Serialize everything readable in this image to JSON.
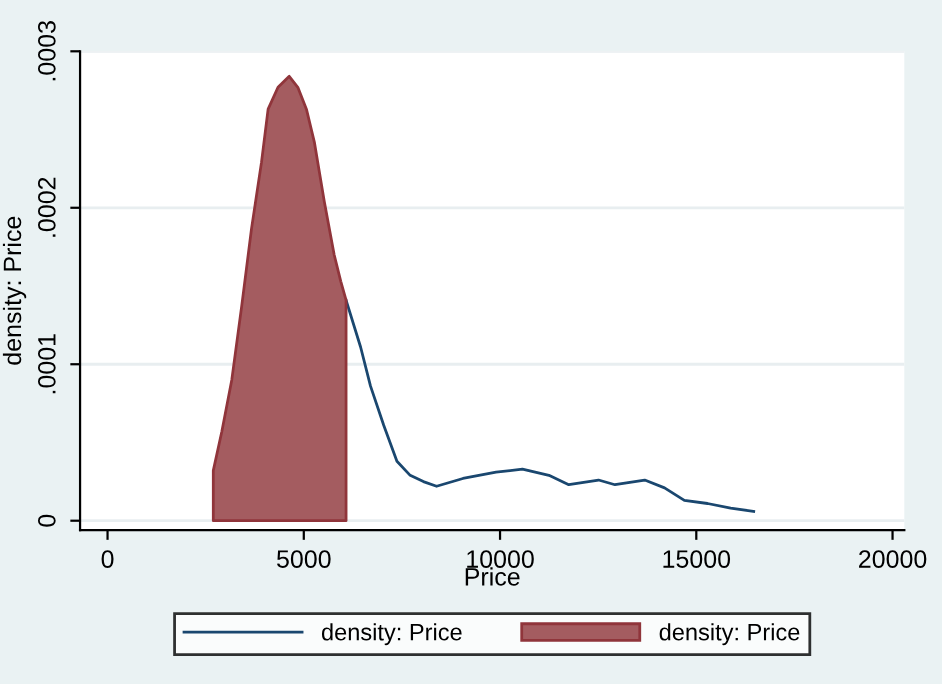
{
  "chart_data": {
    "type": "line",
    "xlabel": "Price",
    "ylabel": "density: Price",
    "xlim": [
      -700,
      20300
    ],
    "ylim": [
      -6e-06,
      0.0003
    ],
    "xticks": [
      0,
      5000,
      10000,
      15000,
      20000
    ],
    "yticks": [
      {
        "value": 0,
        "label": "0"
      },
      {
        "value": 0.0001,
        "label": ".0001"
      },
      {
        "value": 0.0002,
        "label": ".0002"
      },
      {
        "value": 0.0003,
        "label": ".0003"
      }
    ],
    "grid": "y",
    "legend": "bottom",
    "series": [
      {
        "name": "density: Price",
        "color": "#1a476f",
        "x": [
          6077,
          6447,
          6700,
          7036,
          7373,
          7710,
          8047,
          8383,
          9054,
          9898,
          10570,
          11246,
          11751,
          12509,
          12928,
          13686,
          14191,
          14696,
          15287,
          15876,
          16463
        ],
        "values": [
          0.000141,
          0.000111,
          8.6e-05,
          6.1e-05,
          3.8e-05,
          2.9e-05,
          2.5e-05,
          2.2e-05,
          2.7e-05,
          3.1e-05,
          3.3e-05,
          2.9e-05,
          2.3e-05,
          2.6e-05,
          2.3e-05,
          2.6e-05,
          2.1e-05,
          1.3e-05,
          1.1e-05,
          8e-06,
          6e-06
        ]
      },
      {
        "name": "density: Price",
        "type": "area",
        "color": "#a45c60",
        "x": [
          2694,
          2912,
          3165,
          3417,
          3670,
          3922,
          4091,
          4343,
          4629,
          4848,
          5067,
          5269,
          5522,
          5774,
          5942,
          6077
        ],
        "values": [
          3.2e-05,
          5.7e-05,
          9e-05,
          0.000137,
          0.000187,
          0.000229,
          0.000263,
          0.000277,
          0.000284,
          0.000277,
          0.000263,
          0.000242,
          0.000204,
          0.00017,
          0.000153,
          0.000141
        ]
      }
    ]
  }
}
